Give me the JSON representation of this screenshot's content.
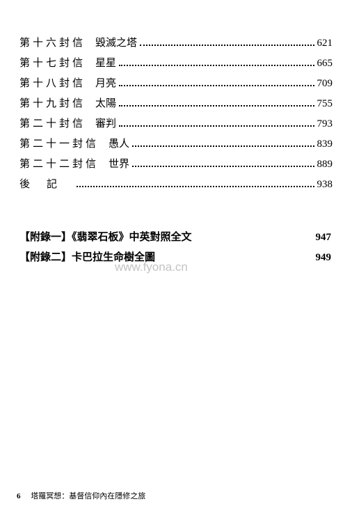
{
  "toc": [
    {
      "label": "第十六封信",
      "title": "毀滅之塔",
      "page": "621",
      "wide": false
    },
    {
      "label": "第十七封信",
      "title": "星星",
      "page": "665",
      "wide": false
    },
    {
      "label": "第十八封信",
      "title": "月亮",
      "page": "709",
      "wide": false
    },
    {
      "label": "第十九封信",
      "title": "太陽",
      "page": "755",
      "wide": false
    },
    {
      "label": "第二十封信",
      "title": "審判",
      "page": "793",
      "wide": false
    },
    {
      "label": "第二十一封信",
      "title": "愚人",
      "page": "839",
      "wide": false
    },
    {
      "label": "第二十二封信",
      "title": "世界",
      "page": "889",
      "wide": false
    },
    {
      "label": "後記",
      "title": "",
      "page": "938",
      "wide": true
    }
  ],
  "appendix": [
    {
      "label": "【附錄一】《翡翠石板》中英對照全文",
      "page": "947"
    },
    {
      "label": "【附錄二】卡巴拉生命樹全圖",
      "page": "949"
    }
  ],
  "watermark": "www.fyona.cn",
  "footer": {
    "pagenum": "6",
    "title": "塔羅冥想：基督信仰內在隱修之旅"
  },
  "styles": {
    "background_color": "#ffffff",
    "text_color": "#000000",
    "watermark_color": "#9b9b9b",
    "font_size_body": 15,
    "font_size_footer": 11,
    "font_family": "SimSun"
  }
}
